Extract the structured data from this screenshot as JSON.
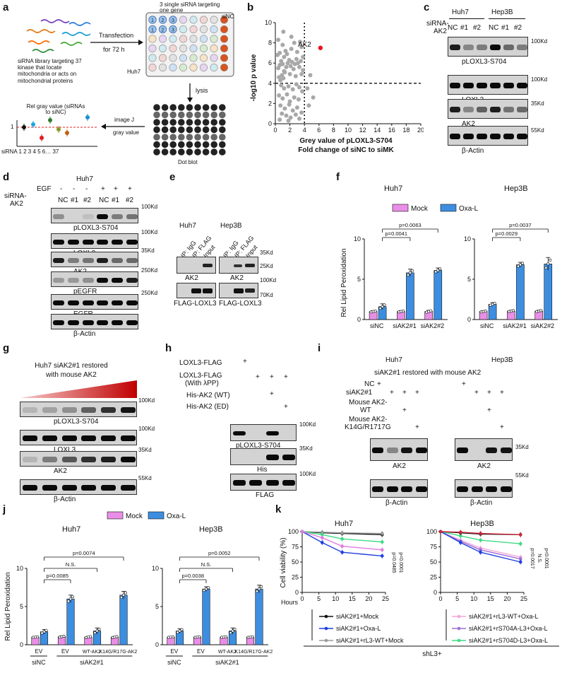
{
  "panels": {
    "a": "a",
    "b": "b",
    "c": "c",
    "d": "d",
    "e": "e",
    "f": "f",
    "g": "g",
    "h": "h",
    "i": "i",
    "j": "j",
    "k": "k"
  },
  "a": {
    "library": "siRNA library targeting 37 kinase that locate mitochondria or acts on mitochondrial proteins",
    "transfection": "Transfection",
    "for72h": "for 72 h",
    "single": "3 single siRNA targeting one gene",
    "sinc": "siNC",
    "huh7": "Huh7",
    "lysis": "lysis",
    "imagej": "image J",
    "gray": "gray value",
    "dotblot": "Dot blot",
    "relgray": "Rel gray value (siRNAs to siNC)",
    "y1": "1",
    "sirna_axis": "siRNA 1   2   3   4   5   6… 37"
  },
  "chart_data": [
    {
      "type": "scatter",
      "panel": "b",
      "xlabel": "Grey value of pLOXL3-S704 Fold change of siNC to siMK",
      "ylabel": "-log10 p value",
      "xlim": [
        0,
        20
      ],
      "ylim": [
        0,
        10
      ],
      "xticks": [
        0,
        2,
        4,
        6,
        8,
        10,
        12,
        14,
        16,
        18,
        20
      ],
      "yticks": [
        0,
        2,
        4,
        6,
        8,
        10
      ],
      "thresholds": {
        "x": 4,
        "y": 4
      },
      "highlight": {
        "label": "AK2",
        "x": 6.2,
        "y": 7.5,
        "color": "#e8141c"
      },
      "points": [
        [
          0.4,
          5.5
        ],
        [
          0.6,
          5.8
        ],
        [
          0.8,
          6.2
        ],
        [
          1.0,
          5.9
        ],
        [
          1.2,
          6.6
        ],
        [
          0.5,
          4.6
        ],
        [
          0.7,
          4.3
        ],
        [
          0.9,
          4.8
        ],
        [
          1.1,
          4.5
        ],
        [
          1.3,
          5.1
        ],
        [
          1.5,
          5.6
        ],
        [
          1.7,
          6.0
        ],
        [
          1.9,
          6.3
        ],
        [
          2.1,
          5.7
        ],
        [
          2.3,
          6.1
        ],
        [
          2.5,
          5.4
        ],
        [
          2.7,
          5.9
        ],
        [
          2.9,
          6.4
        ],
        [
          3.1,
          6.0
        ],
        [
          3.3,
          5.6
        ],
        [
          3.5,
          6.2
        ],
        [
          0.6,
          7.0
        ],
        [
          1.4,
          7.2
        ],
        [
          2.2,
          7.4
        ],
        [
          3.0,
          7.1
        ],
        [
          3.6,
          7.6
        ],
        [
          1.0,
          7.8
        ],
        [
          2.6,
          8.0
        ],
        [
          0.4,
          8.3
        ],
        [
          3.4,
          8.1
        ],
        [
          0.8,
          3.8
        ],
        [
          1.2,
          3.5
        ],
        [
          1.8,
          3.7
        ],
        [
          2.4,
          3.4
        ],
        [
          2.9,
          3.9
        ],
        [
          3.3,
          3.6
        ],
        [
          3.7,
          3.2
        ],
        [
          0.5,
          2.8
        ],
        [
          1.0,
          2.5
        ],
        [
          1.6,
          2.9
        ],
        [
          2.0,
          2.2
        ],
        [
          2.6,
          2.6
        ],
        [
          3.2,
          2.4
        ],
        [
          0.7,
          1.8
        ],
        [
          1.3,
          1.5
        ],
        [
          1.9,
          1.9
        ],
        [
          2.4,
          1.3
        ],
        [
          3.0,
          1.6
        ],
        [
          0.9,
          1.0
        ],
        [
          1.5,
          0.8
        ],
        [
          2.1,
          0.6
        ],
        [
          2.8,
          0.9
        ],
        [
          3.6,
          1.1
        ],
        [
          0.6,
          0.4
        ],
        [
          1.8,
          0.3
        ],
        [
          3.3,
          0.5
        ],
        [
          1.2,
          5.2
        ],
        [
          2.0,
          4.9
        ],
        [
          2.8,
          4.7
        ],
        [
          3.6,
          4.9
        ],
        [
          3.8,
          5.3
        ],
        [
          0.3,
          6.8
        ],
        [
          1.6,
          6.9
        ],
        [
          3.8,
          6.6
        ],
        [
          4.4,
          3.5
        ],
        [
          4.8,
          4.8
        ],
        [
          5.2,
          2.6
        ],
        [
          4.6,
          1.8
        ],
        [
          2.2,
          8.6
        ],
        [
          1.1,
          9.1
        ]
      ]
    },
    {
      "type": "bar",
      "panel": "f-huh7",
      "title": "Huh7",
      "ylabel": "Rel Lipid Peroxidation",
      "ylim": [
        0,
        10
      ],
      "categories": [
        "siNC",
        "siAK2#1",
        "siAK2#2"
      ],
      "series": [
        {
          "name": "Mock",
          "values": [
            1.0,
            1.0,
            1.0
          ],
          "errors": [
            0.1,
            0.1,
            0.15
          ]
        },
        {
          "name": "Oxa-L",
          "values": [
            1.6,
            5.8,
            6.1
          ],
          "errors": [
            0.35,
            0.45,
            0.3
          ]
        }
      ],
      "pvalues": [
        {
          "text": "p=0.0041",
          "from": 0,
          "to": 1
        },
        {
          "text": "p=0.0063",
          "from": 0,
          "to": 2
        }
      ]
    },
    {
      "type": "bar",
      "panel": "f-hep3b",
      "title": "Hep3B",
      "ylim": [
        0,
        10
      ],
      "categories": [
        "siNC",
        "siAK2#1",
        "siAK2#2"
      ],
      "series": [
        {
          "name": "Mock",
          "values": [
            1.0,
            1.05,
            1.05
          ],
          "errors": [
            0.1,
            0.1,
            0.1
          ]
        },
        {
          "name": "Oxa-L",
          "values": [
            1.9,
            6.8,
            6.9
          ],
          "errors": [
            0.2,
            0.3,
            0.8
          ]
        }
      ],
      "pvalues": [
        {
          "text": "p=0.0029",
          "from": 0,
          "to": 1
        },
        {
          "text": "p=0.0037",
          "from": 0,
          "to": 2
        }
      ]
    },
    {
      "type": "bar",
      "panel": "j-huh7",
      "title": "Huh7",
      "ylabel": "Rel Lipid Peroxidation",
      "ylim": [
        0,
        10
      ],
      "categories": [
        "EV",
        "EV",
        "WT-AK2",
        "K14G/R17G-AK2"
      ],
      "series": [
        {
          "name": "Mock",
          "values": [
            1.0,
            1.05,
            1.0,
            1.0
          ],
          "errors": [
            0.05,
            0.1,
            0.1,
            0.1
          ]
        },
        {
          "name": "Oxa-L",
          "values": [
            1.7,
            6.0,
            1.8,
            6.5
          ],
          "errors": [
            0.3,
            0.5,
            0.4,
            0.5
          ]
        }
      ],
      "pvalues": [
        {
          "text": "p=0.0085",
          "from": 0,
          "to": 1
        },
        {
          "text": "N.S.",
          "from": 0,
          "to": 2
        },
        {
          "text": "p=0.0074",
          "from": 0,
          "to": 3
        }
      ]
    },
    {
      "type": "bar",
      "panel": "j-hep3b",
      "title": "Hep3B",
      "ylim": [
        0,
        10
      ],
      "categories": [
        "EV",
        "EV",
        "WT-AK2",
        "K14G/R17G-AK2"
      ],
      "series": [
        {
          "name": "Mock",
          "values": [
            1.0,
            1.0,
            1.0,
            1.0
          ],
          "errors": [
            0.05,
            0.05,
            0.05,
            0.05
          ]
        },
        {
          "name": "Oxa-L",
          "values": [
            1.8,
            7.3,
            1.8,
            7.3
          ],
          "errors": [
            0.3,
            0.3,
            0.4,
            0.5
          ]
        }
      ],
      "pvalues": [
        {
          "text": "p=0.0038",
          "from": 0,
          "to": 1
        },
        {
          "text": "N.S.",
          "from": 0,
          "to": 2
        },
        {
          "text": "p=0.0052",
          "from": 0,
          "to": 3
        }
      ]
    },
    {
      "type": "line",
      "panel": "k-huh7",
      "title": "Huh7",
      "ylabel": "Cell viability (%)",
      "xlabel": "Hours",
      "xlim": [
        0,
        25
      ],
      "ylim": [
        0,
        100
      ],
      "x": [
        0,
        6,
        12,
        24
      ],
      "series": [
        {
          "name": "siAK2#1+Mock",
          "color": "#111111",
          "values": [
            100,
            98,
            97,
            95
          ]
        },
        {
          "name": "siAK2#1+Oxa-L",
          "color": "#1f3fe0",
          "values": [
            100,
            82,
            66,
            60
          ]
        },
        {
          "name": "siAK2#1+rL3-WT+Mock",
          "color": "#9a9a9a",
          "values": [
            100,
            99,
            98,
            97
          ]
        },
        {
          "name": "",
          "color": "#3ddc84",
          "values": [
            100,
            95,
            88,
            83
          ]
        },
        {
          "name": "",
          "color": "#e07be0",
          "values": [
            100,
            90,
            76,
            70
          ]
        }
      ],
      "pvalues": [
        "p=0.0485",
        "p<0.0001"
      ]
    },
    {
      "type": "line",
      "panel": "k-hep3b",
      "title": "Hep3B",
      "xlim": [
        0,
        25
      ],
      "ylim": [
        0,
        100
      ],
      "x": [
        0,
        6,
        12,
        24
      ],
      "series": [
        {
          "name": "siAK2#1+rL3-WT+Oxa-L",
          "color": "#f2a6d8",
          "values": [
            100,
            86,
            73,
            58
          ]
        },
        {
          "name": "siAK2#1+rS704A-L3+Oxa-L",
          "color": "#9b6fd6",
          "values": [
            100,
            84,
            70,
            55
          ]
        },
        {
          "name": "siAK2#1+rS704D-L3+Oxa-L",
          "color": "#3ddc84",
          "values": [
            100,
            93,
            86,
            80
          ]
        },
        {
          "name": "",
          "color": "#1f3fe0",
          "values": [
            100,
            82,
            66,
            50
          ]
        },
        {
          "name": "",
          "color": "#111111",
          "values": [
            100,
            98,
            96,
            95
          ]
        },
        {
          "name": "",
          "color": "#c9283a",
          "values": [
            100,
            99,
            97,
            95
          ]
        }
      ],
      "pvalues": [
        "p=0.0017",
        "N.S.",
        "p<0.0001"
      ]
    }
  ],
  "c": {
    "huh7": "Huh7",
    "hep3b": "Hep3B",
    "sirna": "siRNA-",
    "ak2": "AK2",
    "lanes": [
      "NC",
      "#1",
      "#2",
      "NC",
      "#1",
      "#2"
    ],
    "blots": [
      "pLOXL3-S704",
      "LOXL3",
      "AK2",
      "β-Actin"
    ],
    "mw": [
      "100Kd",
      "100Kd",
      "35Kd",
      "55Kd"
    ]
  },
  "d": {
    "huh7": "Huh7",
    "egf": "EGF",
    "egfsigns": [
      "-",
      "-",
      "-",
      "+",
      "+",
      "+"
    ],
    "sirna": "siRNA-",
    "ak2": "AK2",
    "lanes": [
      "NC",
      "#1",
      "#2",
      "NC",
      "#1",
      "#2"
    ],
    "blots": [
      "pLOXL3-S704",
      "LOXL3",
      "AK2",
      "pEGFR",
      "EGFR",
      "β-Actin"
    ],
    "mw": [
      "100Kd",
      "100Kd",
      "35Kd",
      "250Kd",
      "250Kd"
    ]
  },
  "e": {
    "huh7": "Huh7",
    "hep3b": "Hep3B",
    "lanes": [
      "IP: IgG",
      "IP: FLAG",
      "Input"
    ],
    "blot1": "AK2",
    "blot2": "FLAG-LOXL3",
    "mw": [
      "35Kd",
      "25Kd",
      "100Kd",
      "70Kd"
    ]
  },
  "g": {
    "title1": "Huh7 siAK2#1 restored",
    "title2": "with mouse AK2",
    "blots": [
      "pLOXL3-S704",
      "LOXL3",
      "AK2",
      "β-Actin"
    ],
    "mw": [
      "100Kd",
      "100Kd",
      "35Kd",
      "55Kd"
    ]
  },
  "h": {
    "rows": [
      "LOXL3-FLAG",
      "LOXL3-FLAG",
      "(With λPP)",
      "His-AK2 (WT)",
      "His-AK2 (ED)"
    ],
    "blots": [
      "pLOXL3-S704",
      "His",
      "FLAG"
    ],
    "mw": [
      "100Kd",
      "35Kd",
      "100Kd"
    ],
    "plus": "+"
  },
  "i": {
    "huh7": "Huh7",
    "hep3b": "Hep3B",
    "title": "siAK2#1 restored with mouse AK2",
    "rows": [
      "NC",
      "siAK2#1",
      "Mouse AK2-",
      "WT",
      "Mouse AK2-",
      "K14G/R1717G"
    ],
    "blots": [
      "AK2",
      "AK2",
      "β-Actin",
      "β-Actin"
    ],
    "mw": [
      "35Kd",
      "55Kd"
    ],
    "plus": "+"
  },
  "f": {
    "legend_mock": "Mock",
    "legend_oxa": "Oxa-L"
  },
  "j": {
    "legend_mock": "Mock",
    "legend_oxa": "Oxa-L",
    "sinc": "siNC",
    "siak2": "siAK2#1",
    "siak2b": "siAK2#1"
  },
  "k": {
    "shl3": "shL3+"
  },
  "colors": {
    "mock": "#e98ee7",
    "oxa": "#3d8ee0",
    "red": "#d11f1f",
    "cell": "#c4c4c4",
    "blot_bg": "#d6d6d6",
    "band": "#1a1a1a"
  }
}
